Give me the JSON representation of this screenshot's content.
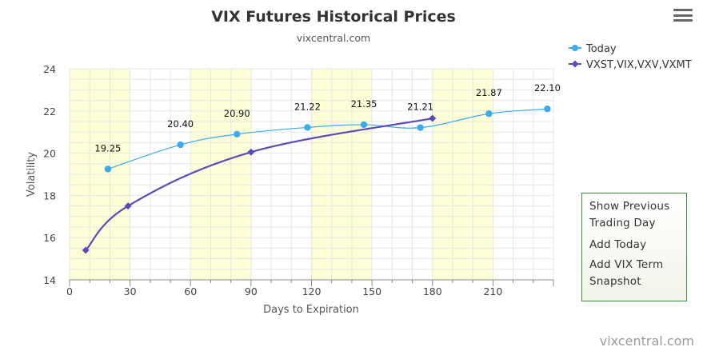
{
  "menu_button": {
    "icon": "hamburger-menu-icon"
  },
  "context_menu": {
    "items": [
      {
        "label": "Show Previous Trading Day"
      },
      {
        "label": "Add Today"
      },
      {
        "label": "Add VIX Term Snapshot"
      }
    ]
  },
  "watermark": "vixcentral.com",
  "colors": {
    "today": "#3aabf0",
    "vxst": "#5b4bb7",
    "band": "#fdfed6",
    "grid": "#e6e6e6",
    "menu_border": "#3a8f3a"
  },
  "chart_data": {
    "type": "line",
    "title": "VIX Futures Historical Prices",
    "subtitle": "vixcentral.com",
    "xlabel": "Days to Expiration",
    "ylabel": "Volatility",
    "xlim": [
      0,
      240
    ],
    "ylim": [
      14,
      24
    ],
    "x_ticks": [
      0,
      30,
      60,
      90,
      120,
      150,
      180,
      210
    ],
    "y_ticks": [
      14,
      16,
      18,
      20,
      22,
      24
    ],
    "bands": [
      [
        0,
        30
      ],
      [
        60,
        90
      ],
      [
        120,
        150
      ],
      [
        180,
        210
      ]
    ],
    "legend_position": "top-right",
    "series": [
      {
        "name": "Today",
        "marker": "circle",
        "x": [
          19,
          55,
          83,
          118,
          146,
          174,
          208,
          237
        ],
        "y": [
          19.25,
          20.4,
          20.9,
          21.22,
          21.35,
          21.21,
          21.87,
          22.1
        ],
        "labels": [
          "19.25",
          "20.40",
          "20.90",
          "21.22",
          "21.35",
          "21.21",
          "21.87",
          "22.10"
        ]
      },
      {
        "name": "VXST,VIX,VXV,VXMT",
        "marker": "diamond",
        "x": [
          8,
          29,
          90,
          180
        ],
        "y": [
          15.4,
          17.5,
          20.05,
          21.65
        ]
      }
    ]
  }
}
